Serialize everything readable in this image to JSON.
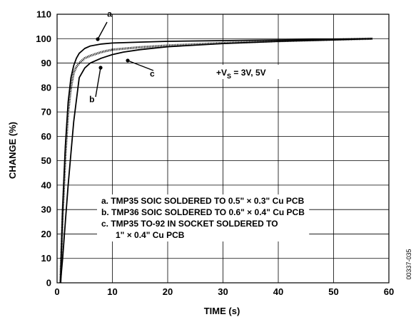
{
  "chart_data": {
    "type": "line",
    "title": "",
    "xlabel": "TIME (s)",
    "ylabel": "CHANGE (%)",
    "xlim": [
      0,
      60
    ],
    "ylim": [
      0,
      110
    ],
    "x_ticks": [
      "0",
      "10",
      "20",
      "30",
      "40",
      "50",
      "60"
    ],
    "y_ticks": [
      "0",
      "10",
      "20",
      "30",
      "40",
      "50",
      "60",
      "70",
      "80",
      "90",
      "100",
      "110"
    ],
    "grid": true,
    "series": [
      {
        "name": "a",
        "style": "solid",
        "x": [
          0.6,
          1.0,
          1.5,
          2.0,
          2.5,
          3.0,
          3.5,
          4.0,
          5.0,
          6.0,
          8.0,
          10.0,
          15.0,
          20.0,
          30.0,
          40.0,
          50.0,
          57.0
        ],
        "y": [
          0,
          30,
          56,
          74,
          84,
          89,
          92,
          94,
          96,
          97,
          97.8,
          98.2,
          98.6,
          98.9,
          99.2,
          99.5,
          99.8,
          100
        ]
      },
      {
        "name": "b",
        "style": "dotted",
        "x": [
          0.6,
          1.0,
          1.5,
          2.0,
          2.5,
          3.0,
          3.5,
          4.0,
          5.0,
          6.0,
          8.0,
          10.0,
          15.0,
          20.0,
          30.0,
          40.0,
          50.0,
          57.0
        ],
        "y": [
          0,
          28,
          52,
          70,
          80,
          86,
          88.5,
          90,
          92,
          93,
          94.5,
          95.5,
          96.5,
          97.2,
          98.2,
          99,
          99.6,
          100
        ]
      },
      {
        "name": "c",
        "style": "solid",
        "x": [
          0.6,
          1.0,
          1.5,
          2.0,
          3.0,
          4.0,
          5.0,
          6.0,
          8.0,
          10.0,
          12.0,
          15.0,
          20.0,
          30.0,
          40.0,
          50.0,
          57.0
        ],
        "y": [
          0,
          10,
          25,
          40,
          66,
          84,
          88,
          90,
          92,
          93.5,
          94.5,
          95.5,
          96.7,
          98,
          98.9,
          99.5,
          100
        ]
      }
    ],
    "annotations": [
      {
        "text": "a",
        "x": 9.5,
        "y": 109
      },
      {
        "text": "b",
        "x": 6.3,
        "y": 74
      },
      {
        "text": "c",
        "x": 17.2,
        "y": 84.5
      }
    ],
    "supply": {
      "prefix": "+V",
      "sub": "S",
      "suffix": " = 3V, 5V"
    },
    "legend_position": "bottom-right",
    "legend_lines": [
      "a.  TMP35 SOIC SOLDERED TO 0.5\" × 0.3\" Cu PCB",
      "b.  TMP36 SOIC SOLDERED TO 0.6\" × 0.4\" Cu PCB",
      "c.  TMP35 TO-92 IN SOCKET SOLDERED TO",
      "1\" × 0.4\" Cu PCB"
    ],
    "figure_code": "00337-035"
  }
}
